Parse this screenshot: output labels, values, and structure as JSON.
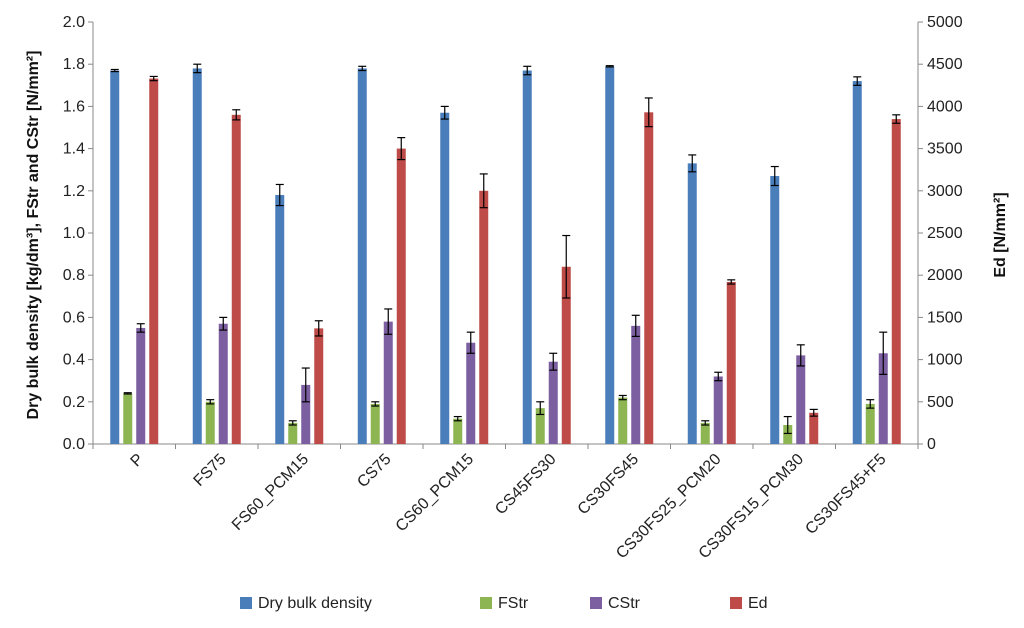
{
  "chart_data": {
    "type": "bar",
    "title": "",
    "xlabel": "",
    "ylabel": "Dry bulk density [kg/dm³], FStr and CStr [N/mm²]",
    "y2label": "Ed [N/mm²]",
    "ylim": [
      0,
      2.0
    ],
    "y2lim": [
      0,
      5000
    ],
    "yticks": [
      "0.0",
      "0.2",
      "0.4",
      "0.6",
      "0.8",
      "1.0",
      "1.2",
      "1.4",
      "1.6",
      "1.8",
      "2.0"
    ],
    "y2ticks": [
      "0",
      "500",
      "1000",
      "1500",
      "2000",
      "2500",
      "3000",
      "3500",
      "4000",
      "4500",
      "5000"
    ],
    "grid": false,
    "legend_position": "bottom",
    "categories": [
      "P",
      "FS75",
      "FS60_PCM15",
      "CS75",
      "CS60_PCM15",
      "CS45FS30",
      "CS30FS45",
      "CS30FS25_PCM20",
      "CS30FS15_PCM30",
      "CS30FS45+F5"
    ],
    "series": [
      {
        "name": "Dry bulk density",
        "axis": "left",
        "color": "#4a7ebb",
        "values": [
          1.77,
          1.78,
          1.18,
          1.78,
          1.57,
          1.77,
          1.79,
          1.33,
          1.27,
          1.72
        ],
        "errors": [
          0.005,
          0.02,
          0.05,
          0.01,
          0.03,
          0.02,
          0.003,
          0.04,
          0.045,
          0.02
        ]
      },
      {
        "name": "FStr",
        "axis": "left",
        "color": "#8db552",
        "values": [
          0.24,
          0.2,
          0.1,
          0.19,
          0.12,
          0.17,
          0.22,
          0.1,
          0.09,
          0.19
        ],
        "errors": [
          0.003,
          0.01,
          0.01,
          0.01,
          0.01,
          0.03,
          0.01,
          0.01,
          0.04,
          0.02
        ]
      },
      {
        "name": "CStr",
        "axis": "left",
        "color": "#7c5fa0",
        "values": [
          0.55,
          0.57,
          0.28,
          0.58,
          0.48,
          0.39,
          0.56,
          0.32,
          0.42,
          0.43
        ],
        "errors": [
          0.02,
          0.03,
          0.08,
          0.06,
          0.05,
          0.04,
          0.05,
          0.02,
          0.05,
          0.1
        ]
      },
      {
        "name": "Ed",
        "axis": "right",
        "color": "#be4b48",
        "values": [
          4330,
          3900,
          1370,
          3500,
          3000,
          2100,
          3930,
          1920,
          370,
          3850
        ],
        "errors": [
          25,
          60,
          90,
          130,
          200,
          370,
          170,
          25,
          40,
          50
        ]
      }
    ]
  }
}
